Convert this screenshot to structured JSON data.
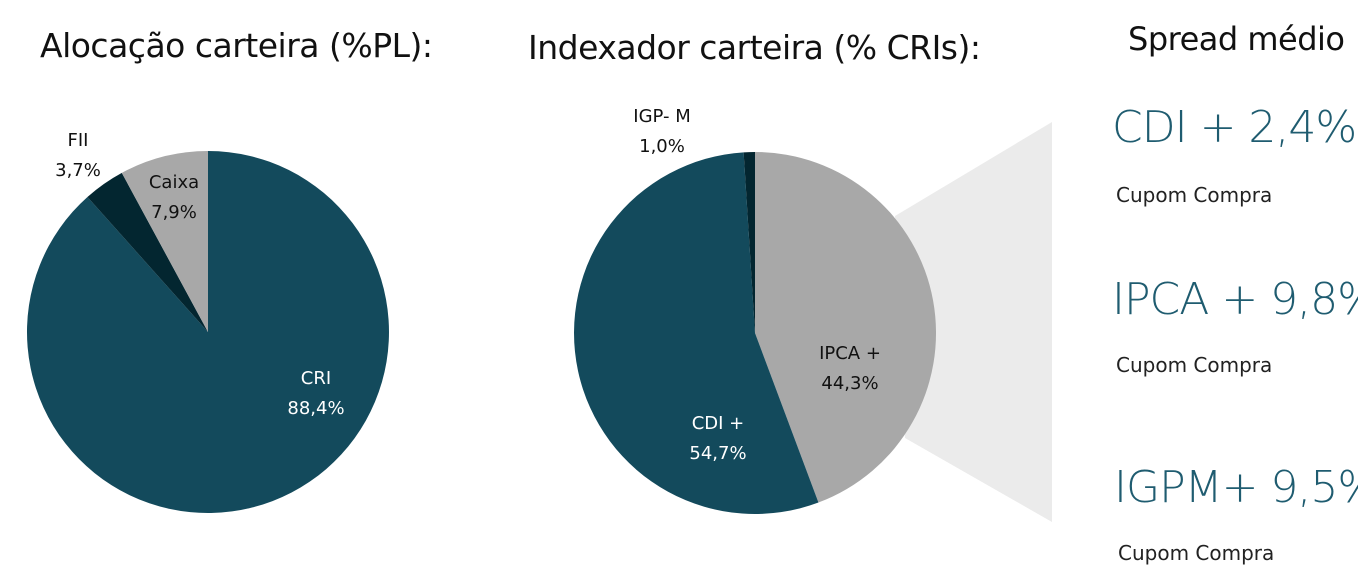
{
  "chart_data": [
    {
      "type": "pie",
      "title": "Alocação carteira (%PL):",
      "slices": [
        {
          "label": "CRI",
          "value": 88.4,
          "value_label": "88,4%",
          "color": "#134a5c"
        },
        {
          "label": "FII",
          "value": 3.7,
          "value_label": "3,7%",
          "color": "#032630"
        },
        {
          "label": "Caixa",
          "value": 7.9,
          "value_label": "7,9%",
          "color": "#a8a8a8"
        }
      ]
    },
    {
      "type": "pie",
      "title": "Indexador carteira (% CRIs):",
      "slices": [
        {
          "label": "IPCA +",
          "value": 44.3,
          "value_label": "44,3%",
          "color": "#a8a8a8"
        },
        {
          "label": "CDI +",
          "value": 54.7,
          "value_label": "54,7%",
          "color": "#134a5c"
        },
        {
          "label": "IGP- M",
          "value": 1.0,
          "value_label": "1,0%",
          "color": "#032630"
        }
      ]
    }
  ],
  "spread": {
    "title": "Spread médio",
    "color": "#1f5c70",
    "items": [
      {
        "value": "CDI + 2,4%",
        "note": "Cupom Compra"
      },
      {
        "value": "IPCA + 9,8%",
        "note": "Cupom Compra"
      },
      {
        "value": "IGPM+ 9,5%",
        "note": "Cupom Compra"
      }
    ]
  },
  "colors": {
    "callout": "#ebebeb"
  }
}
